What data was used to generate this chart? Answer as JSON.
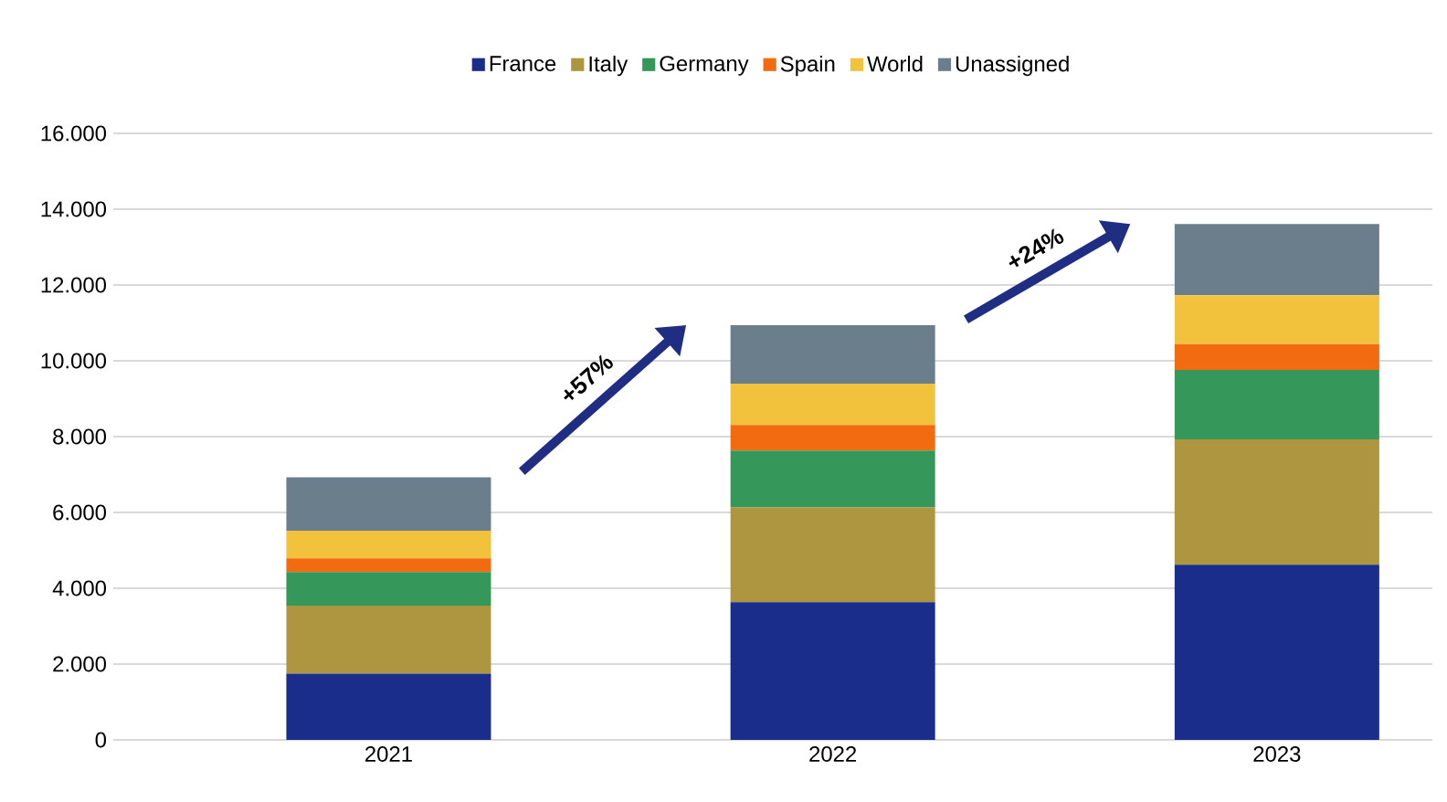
{
  "chart_data": {
    "type": "bar",
    "stacked": true,
    "categories": [
      "2021",
      "2022",
      "2023"
    ],
    "series": [
      {
        "name": "France",
        "color": "#1a2d8a",
        "values": [
          1750,
          3630,
          4620
        ]
      },
      {
        "name": "Italy",
        "color": "#ae9540",
        "values": [
          1790,
          2500,
          3310
        ]
      },
      {
        "name": "Germany",
        "color": "#36975a",
        "values": [
          890,
          1500,
          1830
        ]
      },
      {
        "name": "Spain",
        "color": "#f36b10",
        "values": [
          360,
          680,
          680
        ]
      },
      {
        "name": "World",
        "color": "#f2c23c",
        "values": [
          730,
          1090,
          1290
        ]
      },
      {
        "name": "Unassigned",
        "color": "#6b7e8b",
        "values": [
          1410,
          1540,
          1880
        ]
      }
    ],
    "ylim": [
      0,
      16000
    ],
    "yticks": [
      0,
      {
        "value": 2000,
        "label": "2.000"
      },
      {
        "value": 4000,
        "label": "4.000"
      },
      {
        "value": 6000,
        "label": "6.000"
      },
      {
        "value": 8000,
        "label": "8.000"
      },
      {
        "value": 10000,
        "label": "10.000"
      },
      {
        "value": 12000,
        "label": "12.000"
      },
      {
        "value": 14000,
        "label": "14.000"
      },
      {
        "value": 16000,
        "label": "16.000"
      }
    ],
    "grid": "y",
    "legend": "top",
    "annotations": [
      "+57%",
      "+24%"
    ]
  }
}
